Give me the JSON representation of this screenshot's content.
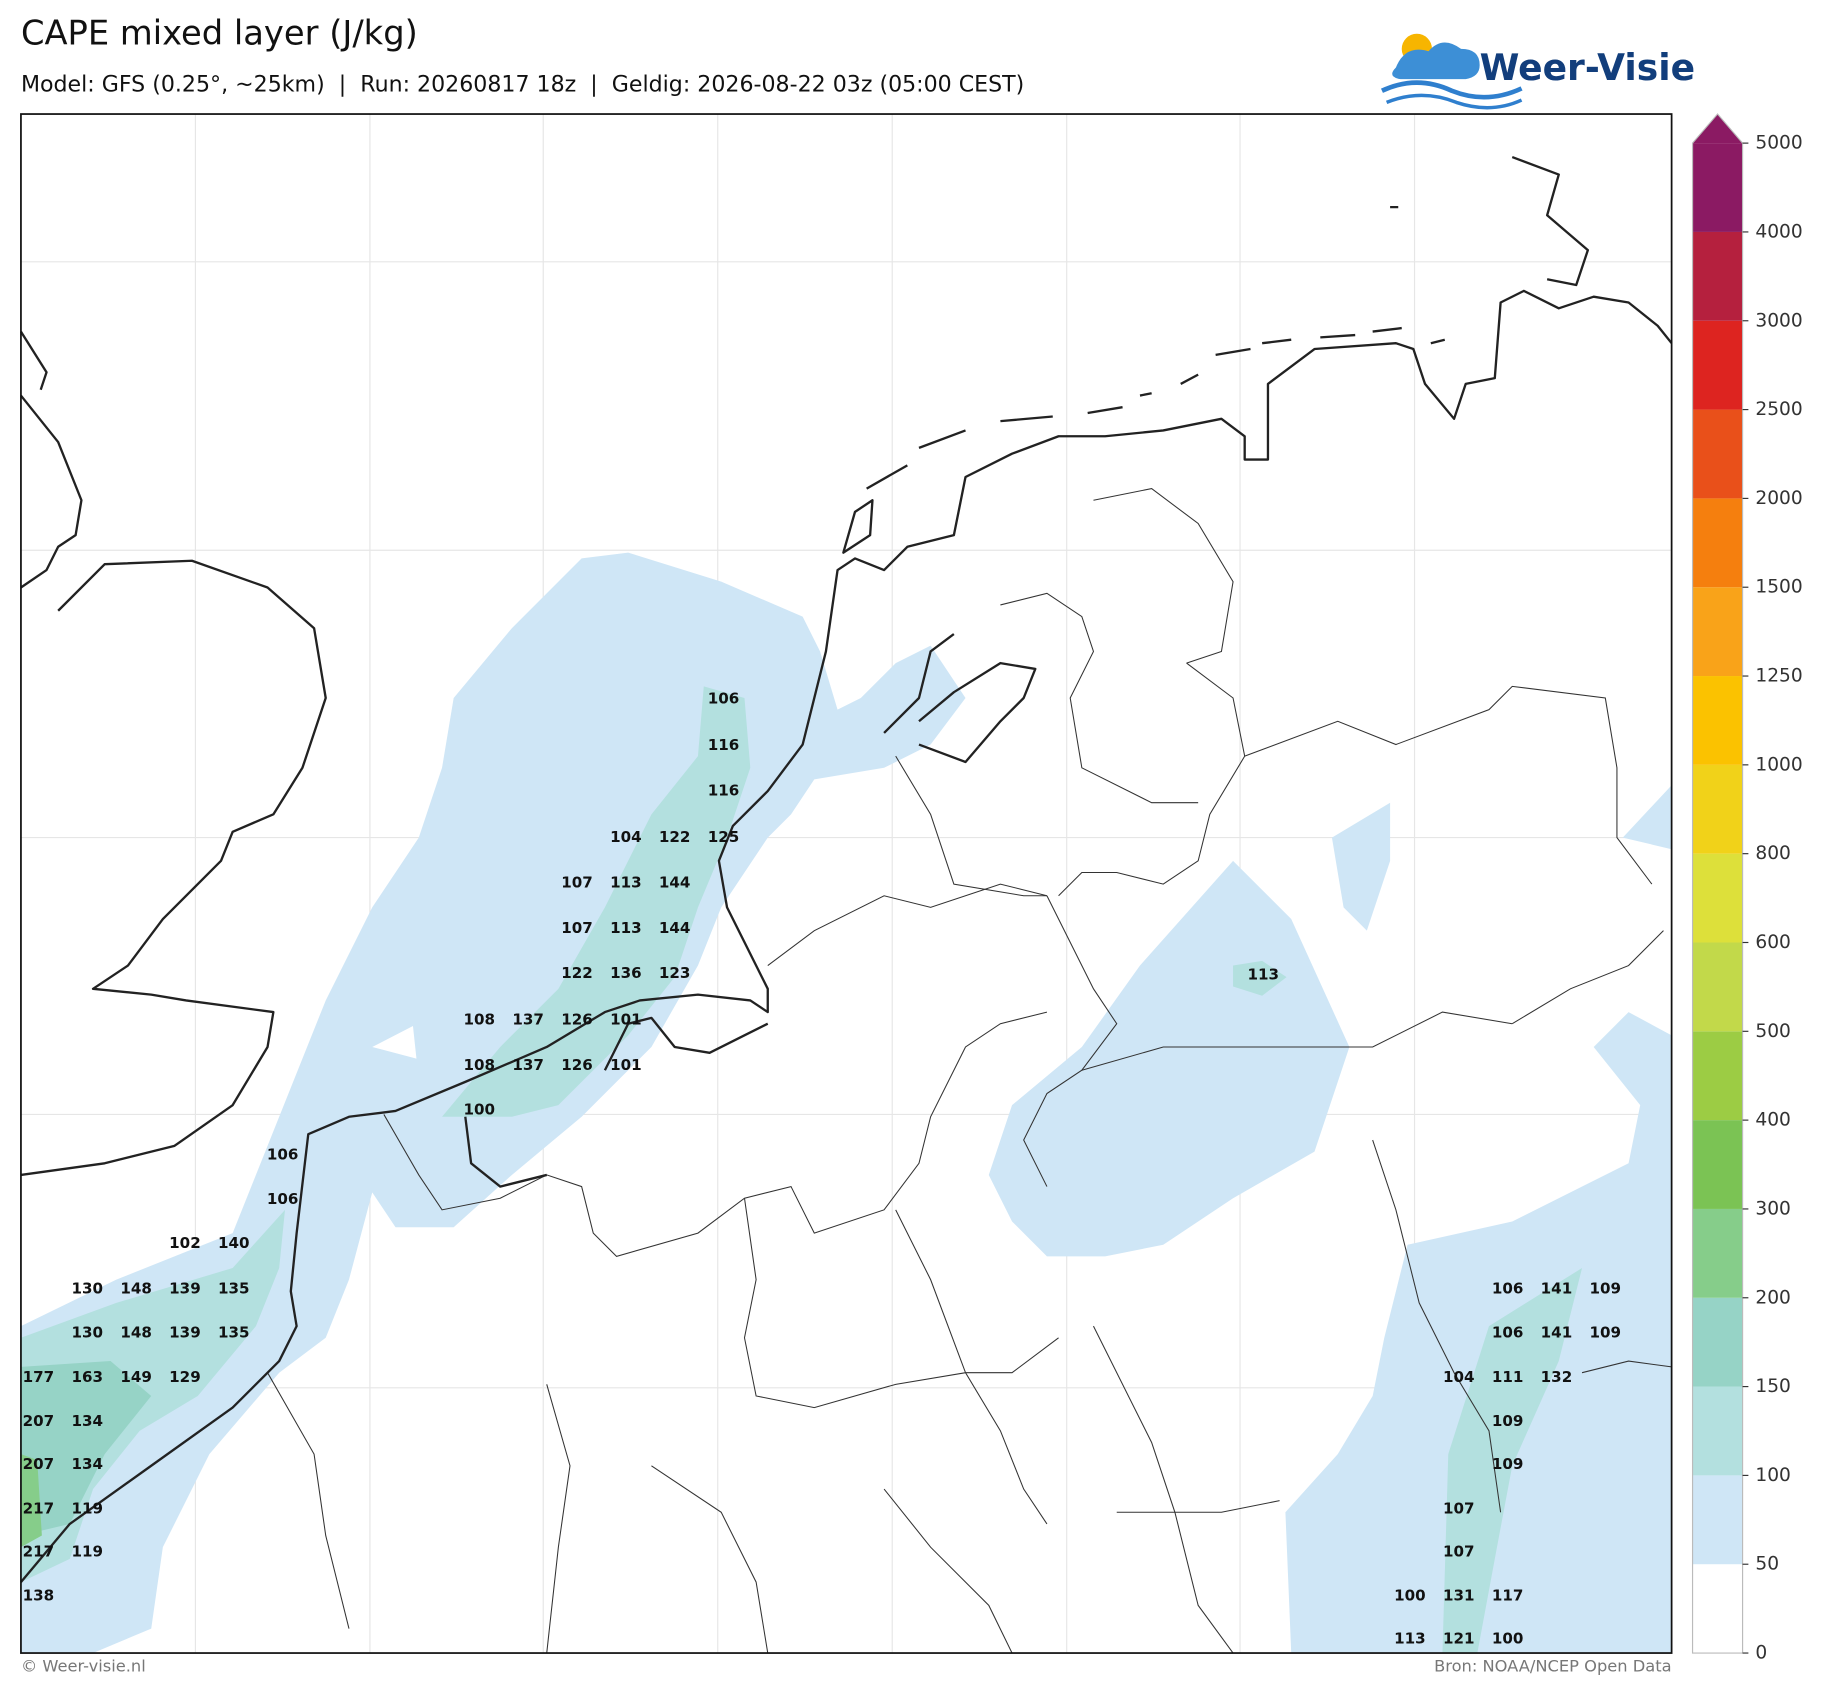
{
  "header": {
    "title": "CAPE mixed layer (J/kg)",
    "subtitle": "Model: GFS (0.25°, ~25km)  |  Run: 20260817 18z  |  Geldig: 2026-08-22 03z (05:00 CEST)"
  },
  "logo": "Weer-Visie",
  "labels": [
    106,
    116,
    116,
    104,
    122,
    125,
    107,
    113,
    144,
    107,
    113,
    144,
    122,
    136,
    123,
    108,
    137,
    126,
    101,
    108,
    137,
    126,
    101,
    100,
    106,
    106,
    102,
    140,
    130,
    148,
    139,
    135,
    130,
    148,
    139,
    135,
    177,
    163,
    149,
    129,
    207,
    134,
    207,
    134,
    217,
    119,
    217,
    119,
    138,
    113,
    106,
    141,
    109,
    106,
    141,
    109,
    104,
    111,
    132,
    109,
    109,
    107,
    107,
    100,
    131,
    117,
    113,
    121,
    100
  ],
  "colorbar": {
    "levels": [
      0,
      50,
      100,
      150,
      200,
      300,
      400,
      500,
      600,
      800,
      1000,
      1250,
      1500,
      2000,
      2500,
      3000,
      4000,
      5000
    ],
    "colors": [
      "#ffffff",
      "#cfe6f6",
      "#b3e0df",
      "#96d3c6",
      "#86cd8a",
      "#7bc354",
      "#9ccc44",
      "#c2d94a",
      "#dde03a",
      "#f1d219",
      "#fbc200",
      "#f9a319",
      "#f57f0e",
      "#e9501a",
      "#dd2420",
      "#b5203e",
      "#8b1a63"
    ]
  },
  "footer": {
    "left": "© Weer-visie.nl",
    "right": "Bron: NOAA/NCEP Open Data"
  }
}
